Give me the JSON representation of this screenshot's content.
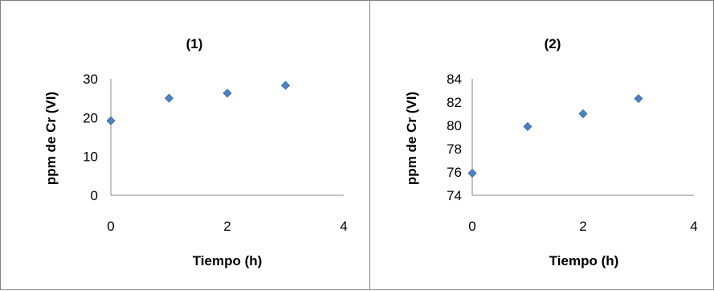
{
  "chart_data": [
    {
      "type": "scatter",
      "title": "(1)",
      "xlabel": "Tiempo (h)",
      "ylabel": "ppm de Cr (VI)",
      "xlim": [
        0,
        4
      ],
      "ylim": [
        0,
        30
      ],
      "xticks": [
        "0",
        "2",
        "4"
      ],
      "yticks": [
        "0",
        "10",
        "20",
        "30"
      ],
      "x": [
        0,
        1,
        2,
        3
      ],
      "y": [
        19.2,
        25.0,
        26.3,
        28.3
      ],
      "marker_color": "#4F81BD",
      "grid": false
    },
    {
      "type": "scatter",
      "title": "(2)",
      "xlabel": "Tiempo (h)",
      "ylabel": "ppm de Cr (VI)",
      "xlim": [
        0,
        4
      ],
      "ylim": [
        74,
        84
      ],
      "xticks": [
        "0",
        "2",
        "4"
      ],
      "yticks": [
        "74",
        "76",
        "78",
        "80",
        "82",
        "84"
      ],
      "x": [
        0,
        1,
        2,
        3
      ],
      "y": [
        75.9,
        79.9,
        81.0,
        82.3
      ],
      "marker_color": "#4F81BD",
      "grid": false
    }
  ]
}
